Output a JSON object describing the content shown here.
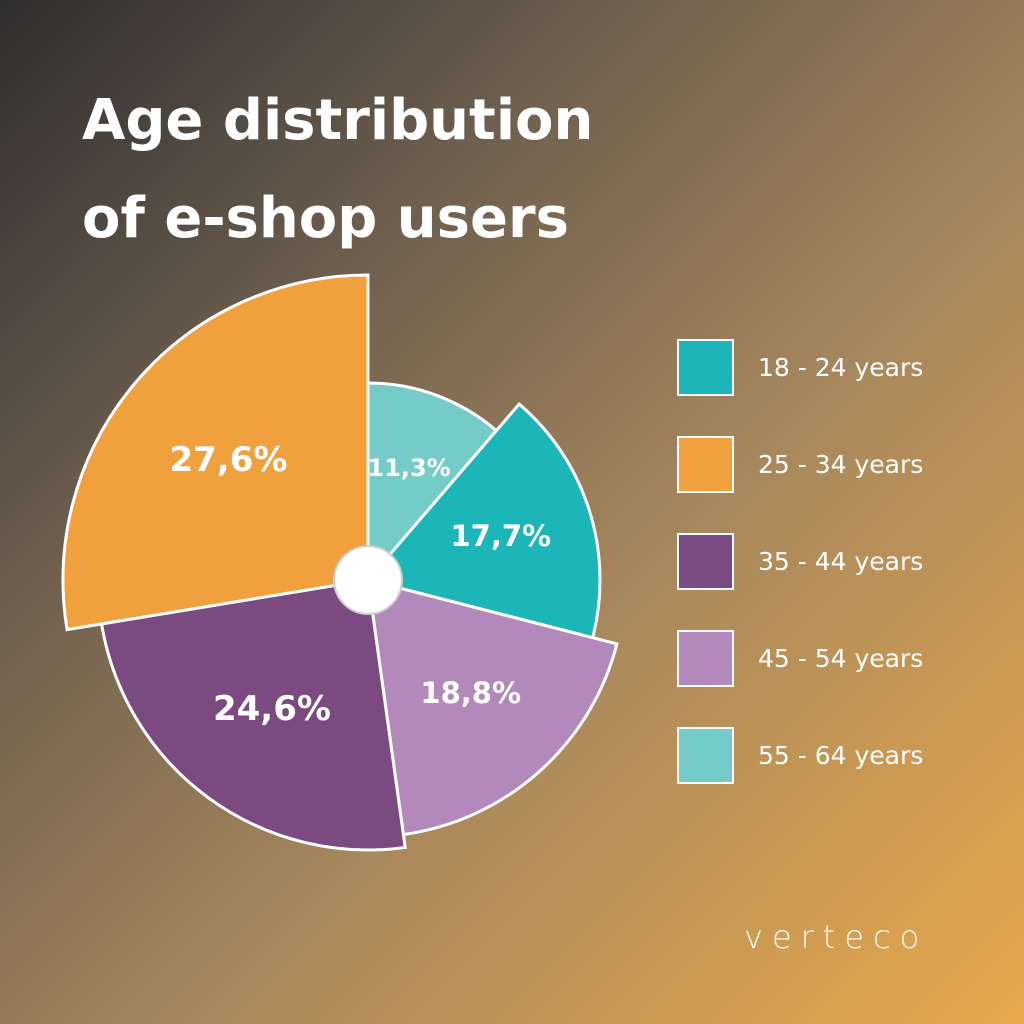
{
  "chart_data": {
    "type": "pie",
    "title": "Age distribution of e-shop users",
    "categories": [
      "18 - 24 years",
      "25 - 34 years",
      "35 - 44 years",
      "45 - 54 years",
      "55 - 64 years"
    ],
    "values": [
      17.7,
      27.6,
      24.6,
      18.8,
      11.3
    ],
    "value_labels": [
      "17,7%",
      "27,6%",
      "24,6%",
      "18,8%",
      "11,3%"
    ],
    "colors": [
      "#1cb5b8",
      "#f0a03c",
      "#7b4a80",
      "#b389bb",
      "#74cbc8"
    ],
    "legend": "right"
  },
  "logo": "verteco"
}
